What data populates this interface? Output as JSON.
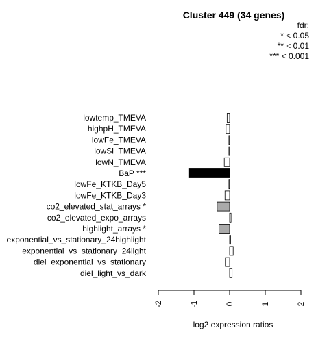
{
  "chart_data": {
    "type": "bar",
    "orientation": "horizontal",
    "title": "Cluster 449 (34 genes)",
    "legend": {
      "title": "fdr:",
      "entries": [
        "* < 0.05",
        "** < 0.01",
        "*** < 0.001"
      ],
      "position": "top-right"
    },
    "xlabel": "log2 expression ratios",
    "xlim": [
      -2,
      2
    ],
    "xticks": [
      "-2",
      "-1",
      "0",
      "1",
      "2"
    ],
    "categories": [
      "lowtemp_TMEVA",
      "highpH_TMEVA",
      "lowFe_TMEVA",
      "lowSi_TMEVA",
      "lowN_TMEVA",
      "BaP ***",
      "lowFe_KTKB_Day5",
      "lowFe_KTKB_Day3",
      "co2_elevated_stat_arrays *",
      "co2_elevated_expo_arrays",
      "highlight_arrays *",
      "exponential_vs_stationary_24highlight",
      "exponential_vs_stationary_24light",
      "diel_exponential_vs_stationary",
      "diel_light_vs_dark"
    ],
    "values": [
      -0.07,
      -0.1,
      -0.02,
      -0.02,
      -0.15,
      -1.13,
      -0.02,
      -0.13,
      -0.35,
      0.04,
      -0.3,
      0.03,
      0.1,
      -0.12,
      0.07
    ],
    "significance": [
      "",
      "",
      "",
      "",
      "",
      "***",
      "",
      "",
      "*",
      "",
      "*",
      "",
      "",
      "",
      ""
    ],
    "colors": {
      "***": "#000000",
      "*": "#aaaaaa",
      "": "#ffffff",
      "stroke": "#000000"
    },
    "grid": false
  }
}
